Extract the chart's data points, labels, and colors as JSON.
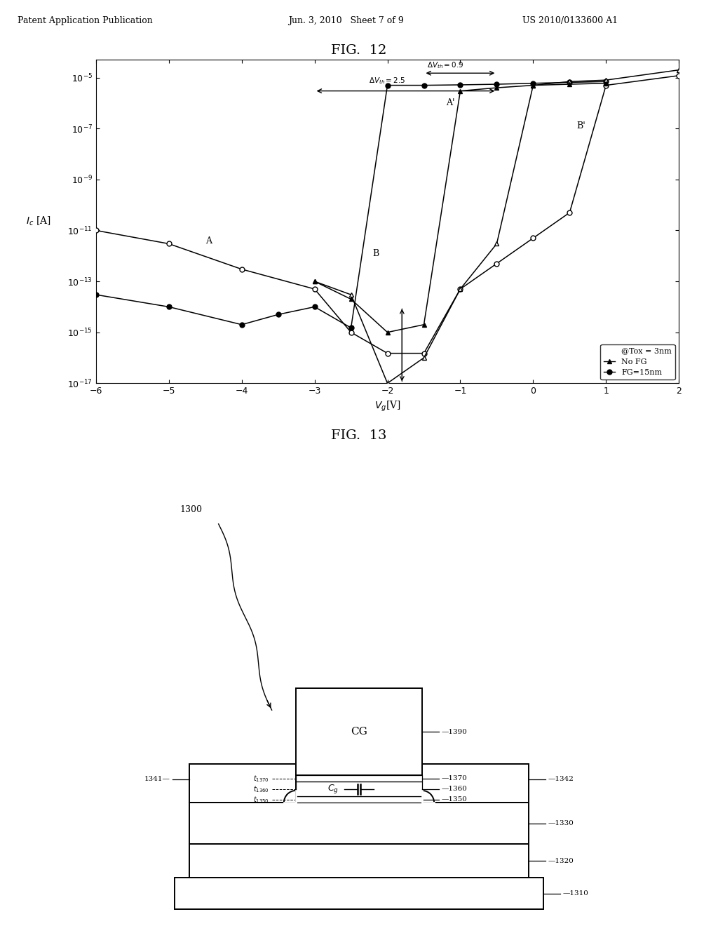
{
  "fig12_title": "FIG.  12",
  "fig13_title": "FIG.  13",
  "header_left": "Patent Application Publication",
  "header_center": "Jun. 3, 2010   Sheet 7 of 9",
  "header_right": "US 2010/0133600 A1",
  "ylabel": "I_c [A]",
  "xlabel": "V_g[V]",
  "xlim": [
    -6,
    2
  ],
  "curve_oc_x": [
    -6,
    -5,
    -4,
    -3,
    -2.5,
    -2,
    -1.5,
    -1,
    -0.5,
    0,
    0.5,
    1,
    2
  ],
  "curve_oc_y": [
    1e-11,
    3e-12,
    3e-13,
    5e-14,
    1e-15,
    1.5e-16,
    1.5e-16,
    5e-14,
    5e-13,
    5e-12,
    5e-11,
    5e-06,
    1.2e-05
  ],
  "curve_fc_x": [
    -6,
    -5,
    -4,
    -3.5,
    -3,
    -2.5,
    -2,
    -1.5,
    -1,
    -0.5,
    0,
    0.5,
    1
  ],
  "curve_fc_y": [
    3e-14,
    1e-14,
    2e-15,
    5e-15,
    1e-14,
    1.5e-15,
    5e-06,
    5e-06,
    5.2e-06,
    5.5e-06,
    6e-06,
    6.5e-06,
    7e-06
  ],
  "curve_ot_x": [
    -3,
    -2.5,
    -2,
    -1.5,
    -1,
    -0.5,
    0,
    0.5,
    1,
    2
  ],
  "curve_ot_y": [
    1e-13,
    3e-14,
    1e-17,
    1e-16,
    5e-14,
    3e-12,
    5e-06,
    7e-06,
    8e-06,
    2e-05
  ],
  "curve_ft_x": [
    -3,
    -2.5,
    -2,
    -1.5,
    -1,
    -0.5,
    0,
    0.5,
    1
  ],
  "curve_ft_y": [
    1e-13,
    2e-14,
    1e-15,
    2e-15,
    3e-06,
    4e-06,
    5e-06,
    5.5e-06,
    6e-06
  ],
  "legend_text": [
    "@Tox = 3nm",
    "No FG",
    "FG=15nm"
  ]
}
